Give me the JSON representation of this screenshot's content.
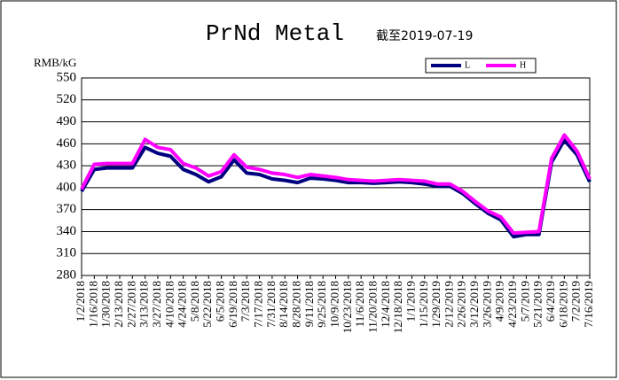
{
  "chart_data": {
    "type": "line",
    "title": "PrNd Metal",
    "subtitle": "截至2019-07-19",
    "y_label": "RMB/kG",
    "categories": [
      "1/2/2018",
      "1/16/2018",
      "1/30/2018",
      "2/13/2018",
      "2/27/2018",
      "3/13/2018",
      "3/27/2018",
      "4/10/2018",
      "4/24/2018",
      "5/8/2018",
      "5/22/2018",
      "6/5/2018",
      "6/19/2018",
      "7/3/2018",
      "7/17/2018",
      "7/31/2018",
      "8/14/2018",
      "8/28/2018",
      "9/11/2018",
      "9/25/2018",
      "10/9/2018",
      "10/23/2018",
      "11/6/2018",
      "11/20/2018",
      "12/4/2018",
      "12/18/2018",
      "1/1/2019",
      "1/15/2019",
      "1/29/2019",
      "2/12/2019",
      "2/26/2019",
      "3/12/2019",
      "3/26/2019",
      "4/9/2019",
      "4/23/2019",
      "5/7/2019",
      "5/21/2019",
      "6/4/2019",
      "6/18/2019",
      "7/2/2019",
      "7/16/2019"
    ],
    "series": [
      {
        "name": "L",
        "color": "#000080",
        "values": [
          395,
          425,
          427,
          427,
          427,
          455,
          447,
          443,
          425,
          418,
          408,
          415,
          438,
          420,
          418,
          412,
          410,
          407,
          413,
          412,
          410,
          407,
          407,
          406,
          407,
          408,
          407,
          405,
          402,
          402,
          392,
          378,
          365,
          356,
          333,
          336,
          336,
          435,
          465,
          445,
          408
        ]
      },
      {
        "name": "H",
        "color": "#ff00ff",
        "values": [
          398,
          432,
          433,
          433,
          433,
          466,
          455,
          452,
          433,
          427,
          416,
          422,
          445,
          428,
          425,
          420,
          418,
          414,
          418,
          416,
          414,
          411,
          410,
          409,
          410,
          411,
          410,
          409,
          405,
          405,
          395,
          381,
          368,
          360,
          338,
          339,
          340,
          440,
          472,
          450,
          412
        ]
      }
    ],
    "ylim": [
      280,
      550
    ],
    "yticks": [
      280,
      310,
      340,
      370,
      400,
      430,
      460,
      490,
      520,
      550
    ],
    "grid": true,
    "legend": "top-right"
  }
}
